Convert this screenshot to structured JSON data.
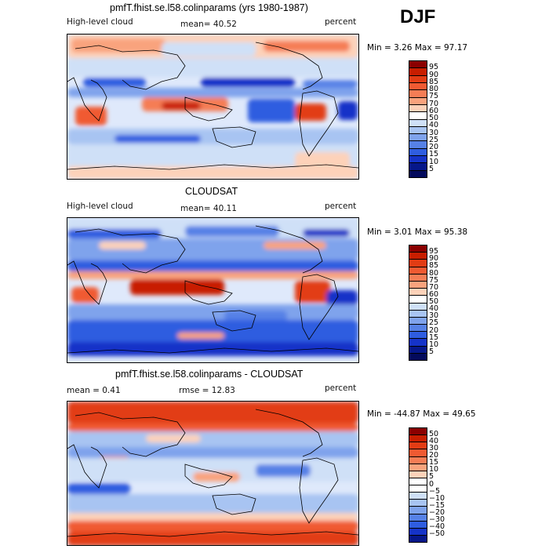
{
  "season": "DJF",
  "panels": [
    {
      "title": "pmfT.fhist.se.l58.colinparams (yrs 1980-1987)",
      "left_label": "High-level cloud",
      "stat1": "mean=  40.52",
      "stat2": "",
      "units": "percent",
      "minmax": "Min =   3.26 Max =  97.17",
      "ticks": [
        "95",
        "90",
        "85",
        "80",
        "75",
        "70",
        "60",
        "50",
        "40",
        "30",
        "25",
        "20",
        "15",
        "10",
        "5"
      ],
      "colors": [
        "#8b0000",
        "#c81e00",
        "#e23c14",
        "#f05a32",
        "#f57d55",
        "#f9a37d",
        "#fdd2b9",
        "#ffffff",
        "#cfe0f7",
        "#a8c4f2",
        "#7fa3ec",
        "#5681e6",
        "#2f5de0",
        "#1533c8",
        "#06178a",
        "#030a5c"
      ],
      "pattern": "model"
    },
    {
      "title": "CLOUDSAT",
      "left_label": "High-level cloud",
      "stat1": "mean=  40.11",
      "stat2": "",
      "units": "percent",
      "minmax": "Min =   3.01 Max =  95.38",
      "ticks": [
        "95",
        "90",
        "85",
        "80",
        "75",
        "70",
        "60",
        "50",
        "40",
        "30",
        "25",
        "20",
        "15",
        "10",
        "5"
      ],
      "colors": [
        "#8b0000",
        "#c81e00",
        "#e23c14",
        "#f05a32",
        "#f57d55",
        "#f9a37d",
        "#fdd2b9",
        "#ffffff",
        "#cfe0f7",
        "#a8c4f2",
        "#7fa3ec",
        "#5681e6",
        "#2f5de0",
        "#1533c8",
        "#06178a",
        "#030a5c"
      ],
      "pattern": "obs"
    },
    {
      "title": "pmfT.fhist.se.l58.colinparams - CLOUDSAT",
      "left_label": "mean =   0.41",
      "stat1": "rmse =  12.83",
      "stat2": "",
      "units": "percent",
      "minmax": "Min = -44.87 Max =  49.65",
      "ticks": [
        "50",
        "40",
        "30",
        "20",
        "15",
        "10",
        "5",
        "0",
        "−5",
        "−10",
        "−15",
        "−20",
        "−30",
        "−40",
        "−50"
      ],
      "colors": [
        "#8b0000",
        "#c81e00",
        "#e23c14",
        "#f05a32",
        "#f57d55",
        "#f9a37d",
        "#fdd2b9",
        "#ffffff",
        "#ffffff",
        "#cfe0f7",
        "#a8c4f2",
        "#7fa3ec",
        "#5681e6",
        "#2f5de0",
        "#1533c8",
        "#06178a"
      ],
      "pattern": "diff"
    }
  ]
}
